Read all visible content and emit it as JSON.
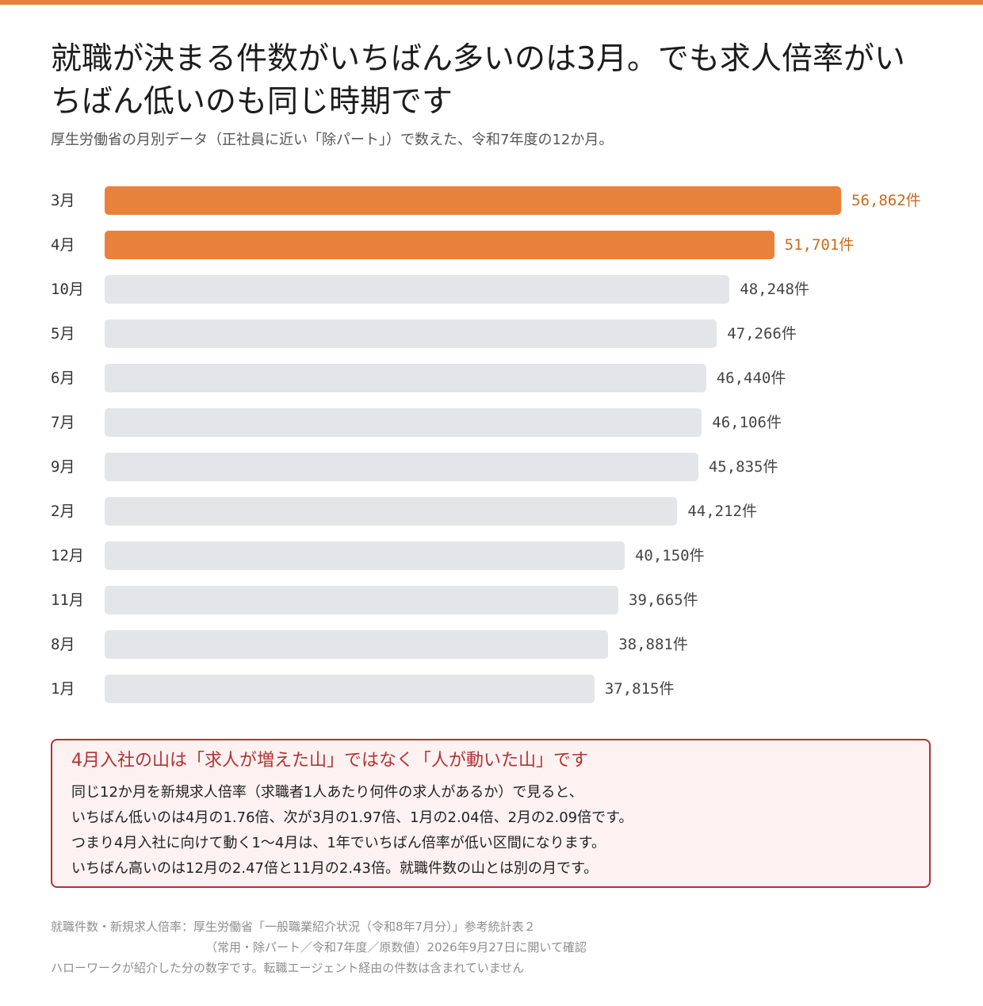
{
  "colors": {
    "accent": "#E8823A",
    "bar_default": "#E4E5E9",
    "accent_text": "#C96A1E",
    "value_text": "#444444"
  },
  "title": "就職が決まる件数がいちばん多いのは3月。でも求人倍率がいちばん低いのも同じ時期です",
  "subtitle": "厚生労働省の月別データ（正社員に近い「除パート」）で数えた、令和7年度の12か月。",
  "chart_data": {
    "type": "bar",
    "orientation": "horizontal",
    "categories": [
      "3月",
      "4月",
      "10月",
      "5月",
      "6月",
      "7月",
      "9月",
      "2月",
      "12月",
      "11月",
      "8月",
      "1月"
    ],
    "values": [
      56862,
      51701,
      48248,
      47266,
      46440,
      46106,
      45835,
      44212,
      40150,
      39665,
      38881,
      37815
    ],
    "value_labels": [
      "56,862件",
      "51,701件",
      "48,248件",
      "47,266件",
      "46,440件",
      "46,106件",
      "45,835件",
      "44,212件",
      "40,150件",
      "39,665件",
      "38,881件",
      "37,815件"
    ],
    "highlighted": [
      "3月",
      "4月"
    ],
    "unit": "件",
    "xlim": [
      0,
      56862
    ],
    "title": "",
    "xlabel": "",
    "ylabel": "",
    "grid": false,
    "legend": "none"
  },
  "note": {
    "title": "4月入社の山は「求人が増えた山」ではなく「人が動いた山」です",
    "lines": [
      "同じ12か月を新規求人倍率（求職者1人あたり何件の求人があるか）で見ると、",
      "いちばん低いのは4月の1.76倍、次が3月の1.97倍、1月の2.04倍、2月の2.09倍です。",
      "つまり4月入社に向けて動く1〜4月は、1年でいちばん倍率が低い区間になります。",
      "いちばん高いのは12月の2.47倍と11月の2.43倍。就職件数の山とは別の月です。"
    ]
  },
  "footer": {
    "source_line1": "就職件数・新規求人倍率：厚生労働省「一般職業紹介状況（令和8年7月分）」参考統計表２",
    "source_line2": "（常用・除パート／令和7年度／原数値）2026年9月27日に開いて確認",
    "disclaimer": "ハローワークが紹介した分の数字です。転職エージェント経由の件数は含まれていません"
  }
}
